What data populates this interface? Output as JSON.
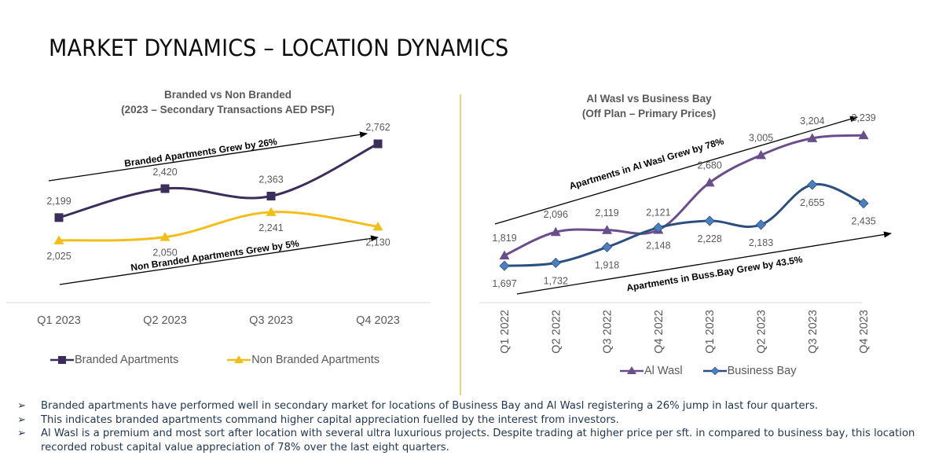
{
  "page": {
    "title": "MARKET DYNAMICS – LOCATION DYNAMICS"
  },
  "colors": {
    "branded": "#3b2d5c",
    "non_branded": "#f2bf1a",
    "al_wasl": "#6a4e8c",
    "business_bay": "#2b4f7e",
    "business_bay_marker": "#4a7fc0",
    "divider": "#f3d47a",
    "label_text": "#595959",
    "bullet_text": "#1f3650"
  },
  "chart_data": [
    {
      "type": "line",
      "title": "Branded vs Non Branded",
      "subtitle": "(2023 – Secondary Transactions AED PSF)",
      "categories": [
        "Q1 2023",
        "Q2 2023",
        "Q3 2023",
        "Q4 2023"
      ],
      "series": [
        {
          "name": "Branded Apartments",
          "marker": "square",
          "values": [
            2199,
            2420,
            2363,
            2762
          ],
          "labels": [
            "2,199",
            "2,420",
            "2,363",
            "2,762"
          ],
          "label_position": "above"
        },
        {
          "name": "Non Branded Apartments",
          "marker": "triangle",
          "values": [
            2025,
            2050,
            2241,
            2130
          ],
          "labels": [
            "2,025",
            "2,050",
            "2,241",
            "2,130"
          ],
          "label_position": "below"
        }
      ],
      "annotations": [
        "Branded Apartments Grew by 26%",
        "Non Branded Apartments Grew by 5%"
      ],
      "xlabel": "",
      "ylabel": "",
      "ylim": [
        1700,
        2900
      ],
      "grid": false,
      "legend": "bottom",
      "smooth": true
    },
    {
      "type": "line",
      "title": "Al Wasl vs Business Bay",
      "subtitle": "(Off Plan – Primary Prices)",
      "categories": [
        "Q1 2022",
        "Q2 2022",
        "Q3 2022",
        "Q4 2022",
        "Q1 2023",
        "Q2 2023",
        "Q3 2023",
        "Q4 2023"
      ],
      "series": [
        {
          "name": "Al Wasl",
          "marker": "triangle",
          "values": [
            1819,
            2096,
            2119,
            2121,
            2680,
            3005,
            3204,
            3239
          ],
          "labels": [
            "1,819",
            "2,096",
            "2,119",
            "2,121",
            "2,680",
            "3,005",
            "3,204",
            "3,239"
          ],
          "label_position": "above"
        },
        {
          "name": "Business Bay",
          "marker": "diamond",
          "values": [
            1697,
            1732,
            1918,
            2148,
            2228,
            2183,
            2655,
            2435
          ],
          "labels": [
            "1,697",
            "1,732",
            "1,918",
            "2,148",
            "2,228",
            "2,183",
            "2,655",
            "2,435"
          ],
          "label_position": "below"
        }
      ],
      "annotations": [
        "Apartments in Al Wasl Grew by 78%",
        "Apartments in Buss.Bay Grew by 43.5%"
      ],
      "xlabel": "",
      "ylabel": "",
      "ylim": [
        1300,
        3500
      ],
      "grid": false,
      "legend": "bottom",
      "smooth": true
    }
  ],
  "bullets": [
    "Branded apartments have performed well in secondary market for locations of Business Bay and Al Wasl registering a 26% jump in last four quarters.",
    "This indicates branded apartments command higher capital appreciation fuelled by the interest from investors.",
    "Al Wasl is a premium and most sort after location with several ultra luxurious projects. Despite trading at higher price per sft. in compared to business bay, this location recorded robust capital value appreciation of 78% over the last eight quarters."
  ],
  "bullet_glyph": "➢"
}
